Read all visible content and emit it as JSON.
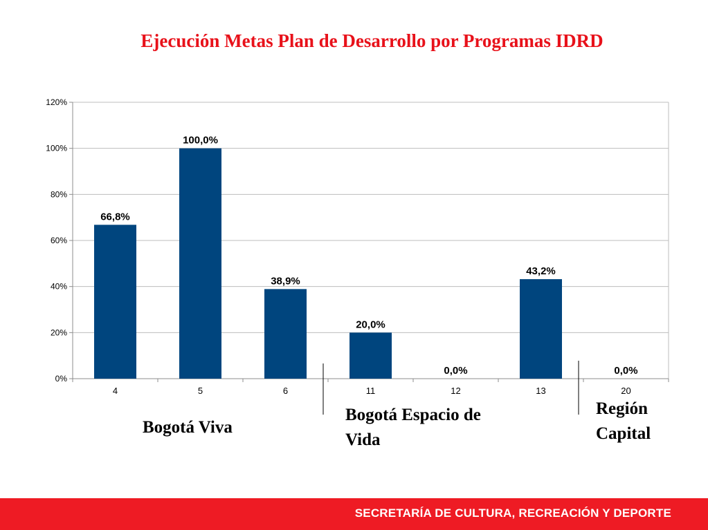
{
  "title": "Ejecución Metas Plan de Desarrollo por Programas IDRD",
  "chart_data": {
    "type": "bar",
    "categories": [
      "4",
      "5",
      "6",
      "11",
      "12",
      "13",
      "20"
    ],
    "values": [
      66.8,
      100.0,
      38.9,
      20.0,
      0.0,
      43.2,
      0.0
    ],
    "data_labels": [
      "66,8%",
      "100,0%",
      "38,9%",
      "20,0%",
      "0,0%",
      "43,2%",
      "0,0%"
    ],
    "y_ticks": [
      "0%",
      "20%",
      "40%",
      "60%",
      "80%",
      "100%",
      "120%"
    ],
    "ylim": [
      0,
      120
    ],
    "grid": true,
    "bar_color": "#00457e",
    "legend": "none"
  },
  "groups": {
    "bogota_viva": "Bogotá Viva",
    "bogota_espacio_line1": "Bogotá Espacio de",
    "bogota_espacio_line2": "Vida",
    "region_line1": "Región",
    "region_line2": "Capital"
  },
  "footer": {
    "text": "SECRETARÍA DE CULTURA, RECREACIÓN Y DEPORTE",
    "color": "#ee1b24"
  }
}
